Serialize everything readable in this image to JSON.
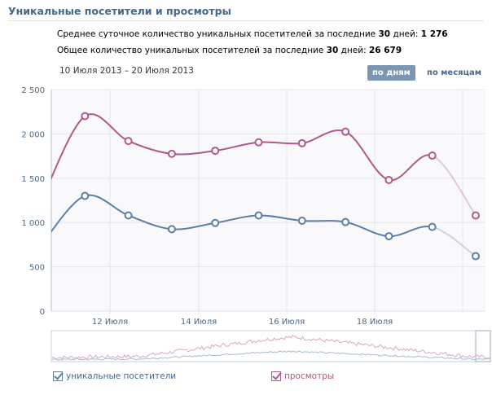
{
  "header": {
    "title": "Уникальные посетители и просмотры"
  },
  "stats": {
    "avg_prefix": "Среднее суточное количество уникальных посетителей за последние",
    "avg_days": "30",
    "avg_mid": "дней:",
    "avg_value": "1 276",
    "total_prefix": "Общее количество уникальных посетителей за последние",
    "total_days": "30",
    "total_mid": "дней:",
    "total_value": "26 679"
  },
  "date_range": "10 Июля 2013 – 20 Июля 2013",
  "buttons": {
    "by_day": "по дням",
    "by_month": "по месяцам",
    "active": "by_day"
  },
  "chart_data": {
    "type": "line",
    "x": [
      "10 Июля",
      "11 Июля",
      "12 Июля",
      "13 Июля",
      "14 Июля",
      "15 Июля",
      "16 Июля",
      "17 Июля",
      "18 Июля",
      "19 Июля",
      "20 Июля"
    ],
    "series": [
      {
        "name": "уникальные посетители",
        "color": "#5b7fa6",
        "values": [
          750,
          1300,
          1080,
          925,
          995,
          1080,
          1020,
          1005,
          845,
          950,
          620
        ]
      },
      {
        "name": "просмотры",
        "color": "#b05889",
        "values": [
          1250,
          2200,
          1920,
          1775,
          1810,
          1905,
          1895,
          2025,
          1480,
          1755,
          1080
        ]
      }
    ],
    "ylim": [
      0,
      2500
    ],
    "yticks": [
      0,
      500,
      1000,
      1500,
      2000,
      2500
    ],
    "ytick_labels": [
      "0",
      "500",
      "1 000",
      "1 500",
      "2 000",
      "2 500"
    ],
    "xtick_labels": [
      "12 Июля",
      "14 Июля",
      "16 Июля",
      "18 Июля"
    ],
    "grid": true,
    "legend": "bottom"
  },
  "legend": {
    "visitors": "уникальные посетители",
    "views": "просмотры",
    "visitors_checked": true,
    "views_checked": true
  }
}
